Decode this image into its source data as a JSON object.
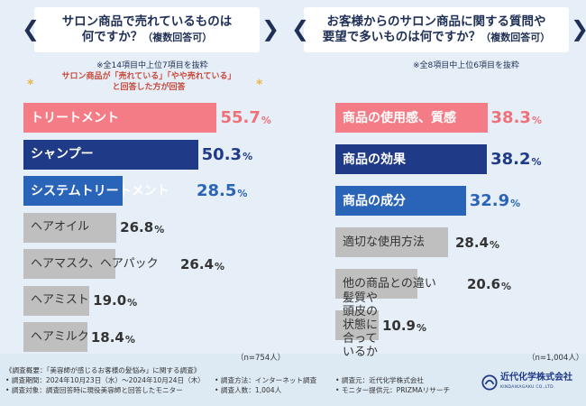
{
  "left": {
    "title_line1": "サロン商品で売れているものは",
    "title_line2_main": "何ですか？",
    "title_line2_small": "（複数回答可）",
    "note": "※全14項目中上位7項目を抜粋",
    "subnote_line1": "サロン商品が「売れている」「やや売れている」",
    "subnote_line2": "と回答した方が回答",
    "n_label": "（n=754人）"
  },
  "right": {
    "title_line1": "お客様からのサロン商品に関する質問や",
    "title_line2_main": "要望で多いものは何ですか？",
    "title_line2_small": "（複数回答可）",
    "note": "※全8項目中上位6項目を抜粋",
    "n_label": "（n=1,004人）"
  },
  "chart_data": [
    {
      "type": "bar",
      "title": "サロン商品で売れているものは何ですか？（複数回答可）",
      "orientation": "horizontal",
      "unit": "%",
      "categories": [
        "トリートメント",
        "シャンプー",
        "システムトリートメント",
        "ヘアオイル",
        "ヘアマスク、ヘアパック",
        "ヘアミスト",
        "ヘアミルク"
      ],
      "values": [
        55.7,
        50.3,
        28.5,
        26.8,
        26.4,
        19.0,
        18.4
      ],
      "value_labels": [
        "55.7",
        "50.3",
        "28.5",
        "26.8",
        "26.4",
        "19.0",
        "18.4"
      ],
      "colors": [
        "#f47c86",
        "#1f3a86",
        "#2a64b8",
        "#bfbfbf",
        "#bfbfbf",
        "#bfbfbf",
        "#bfbfbf"
      ],
      "styles": [
        "pink",
        "navy",
        "blue",
        "gray",
        "gray",
        "gray",
        "gray"
      ]
    },
    {
      "type": "bar",
      "title": "お客様からのサロン商品に関する質問や要望で多いものは何ですか？（複数回答可）",
      "orientation": "horizontal",
      "unit": "%",
      "categories": [
        "商品の使用感、質感",
        "商品の効果",
        "商品の成分",
        "適切な使用方法",
        "他の商品との違い",
        "髪質や頭皮の状態に合っているか"
      ],
      "values": [
        38.3,
        38.2,
        32.9,
        28.4,
        20.6,
        10.9
      ],
      "value_labels": [
        "38.3",
        "38.2",
        "32.9",
        "28.4",
        "20.6",
        "10.9"
      ],
      "colors": [
        "#f47c86",
        "#1f3a86",
        "#2a64b8",
        "#bfbfbf",
        "#bfbfbf",
        "#bfbfbf"
      ],
      "styles": [
        "pink",
        "navy",
        "blue",
        "gray",
        "gray",
        "gray"
      ]
    }
  ],
  "footer": {
    "overview": "《調査概要：「美容師が感じるお客様の髪悩み」に関する調査》",
    "period": "• 調査期間：2024年10月23日（水）～2024年10月24日（木）",
    "target": "• 調査対象：調査回答時に現役美容師と回答したモニター",
    "method": "• 調査方法：インターネット調査",
    "count": "• 調査人数：1,004人",
    "sponsor": "• 調査元：近代化学株式会社",
    "provider": "• モニター提供元：PRIZMAリサーチ"
  },
  "logo": {
    "name": "近代化学株式会社",
    "sub": "KINDAIKAGAKU CO.,LTD."
  }
}
